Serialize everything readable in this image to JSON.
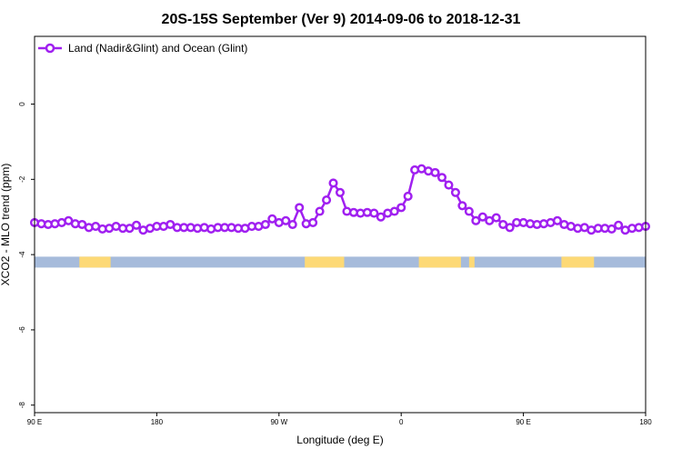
{
  "chart_data": {
    "type": "line",
    "title": "20S-15S September (Ver 9)   2014-09-06 to 2018-12-31",
    "xlabel": "Longitude (deg E)",
    "ylabel": "XCO2 - MLO trend (ppm)",
    "xlim": [
      90,
      540
    ],
    "ylim": [
      -8.2,
      1.8
    ],
    "x_ticks": [
      {
        "value": 90,
        "label": "90 E"
      },
      {
        "value": 180,
        "label": "180"
      },
      {
        "value": 270,
        "label": "90 W"
      },
      {
        "value": 360,
        "label": "0"
      },
      {
        "value": 450,
        "label": "90 E"
      },
      {
        "value": 540,
        "label": "180"
      }
    ],
    "y_ticks": [
      {
        "value": 0,
        "label": "0"
      },
      {
        "value": -2,
        "label": "-2"
      },
      {
        "value": -4,
        "label": "-4"
      },
      {
        "value": -6,
        "label": "-6"
      },
      {
        "value": -8,
        "label": "-8"
      }
    ],
    "legend_position": "top-left",
    "grid": false,
    "series": [
      {
        "name": "Land (Nadir&Glint) and Ocean (Glint)",
        "color": "#a020f0",
        "x": [
          90,
          95,
          100,
          105,
          110,
          115,
          120,
          125,
          130,
          135,
          140,
          145,
          150,
          155,
          160,
          165,
          170,
          175,
          180,
          185,
          190,
          195,
          200,
          205,
          210,
          215,
          220,
          225,
          230,
          235,
          240,
          245,
          250,
          255,
          260,
          265,
          270,
          275,
          280,
          285,
          290,
          295,
          300,
          305,
          310,
          315,
          320,
          325,
          330,
          335,
          340,
          345,
          350,
          355,
          360,
          365,
          370,
          375,
          380,
          385,
          390,
          395,
          400,
          405,
          410,
          415,
          420,
          425,
          430,
          435,
          440,
          445,
          450,
          455,
          460,
          465,
          470,
          475,
          480,
          485,
          490,
          495,
          500,
          505,
          510,
          515,
          520,
          525,
          530,
          535,
          540
        ],
        "y": [
          -3.15,
          -3.18,
          -3.2,
          -3.18,
          -3.15,
          -3.1,
          -3.18,
          -3.2,
          -3.28,
          -3.25,
          -3.32,
          -3.3,
          -3.25,
          -3.3,
          -3.3,
          -3.22,
          -3.35,
          -3.3,
          -3.25,
          -3.25,
          -3.2,
          -3.28,
          -3.28,
          -3.28,
          -3.3,
          -3.28,
          -3.32,
          -3.28,
          -3.28,
          -3.28,
          -3.3,
          -3.3,
          -3.25,
          -3.25,
          -3.2,
          -3.05,
          -3.15,
          -3.1,
          -3.2,
          -2.75,
          -3.18,
          -3.15,
          -2.85,
          -2.55,
          -2.1,
          -2.35,
          -2.85,
          -2.88,
          -2.9,
          -2.88,
          -2.9,
          -3.0,
          -2.9,
          -2.85,
          -2.75,
          -2.45,
          -1.75,
          -1.72,
          -1.78,
          -1.82,
          -1.95,
          -2.15,
          -2.35,
          -2.7,
          -2.85,
          -3.1,
          -3.0,
          -3.1,
          -3.02,
          -3.2,
          -3.28,
          -3.15,
          -3.15,
          -3.18,
          -3.2,
          -3.18,
          -3.15,
          -3.1,
          -3.2,
          -3.25,
          -3.3,
          -3.28,
          -3.35,
          -3.3,
          -3.3,
          -3.32,
          -3.22,
          -3.35,
          -3.3,
          -3.28,
          -3.25
        ]
      }
    ],
    "surface_strip": {
      "y_center": -4.2,
      "ocean_color": "#a6bbdb",
      "land_color": "#fdd976",
      "land_segments": [
        [
          123,
          146
        ],
        [
          289,
          318
        ],
        [
          373,
          404
        ],
        [
          410,
          414
        ],
        [
          478,
          502
        ]
      ]
    }
  }
}
